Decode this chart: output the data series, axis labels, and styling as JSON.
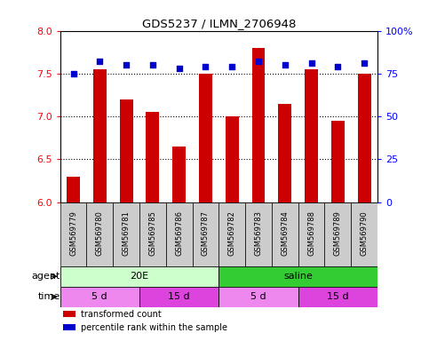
{
  "title": "GDS5237 / ILMN_2706948",
  "samples": [
    "GSM569779",
    "GSM569780",
    "GSM569781",
    "GSM569785",
    "GSM569786",
    "GSM569787",
    "GSM569782",
    "GSM569783",
    "GSM569784",
    "GSM569788",
    "GSM569789",
    "GSM569790"
  ],
  "transformed_counts": [
    6.3,
    7.55,
    7.2,
    7.05,
    6.65,
    7.5,
    7.0,
    7.8,
    7.15,
    7.55,
    6.95,
    7.5
  ],
  "percentile_ranks": [
    75,
    82,
    80,
    80,
    78,
    79,
    79,
    82,
    80,
    81,
    79,
    81
  ],
  "ylim_left": [
    6,
    8
  ],
  "ylim_right": [
    0,
    100
  ],
  "yticks_left": [
    6,
    6.5,
    7,
    7.5,
    8
  ],
  "yticks_right": [
    0,
    25,
    50,
    75,
    100
  ],
  "bar_color": "#cc0000",
  "dot_color": "#0000cc",
  "agent_groups": [
    {
      "label": "20E",
      "start": 0,
      "end": 6,
      "color": "#ccffcc"
    },
    {
      "label": "saline",
      "start": 6,
      "end": 12,
      "color": "#33cc33"
    }
  ],
  "time_groups": [
    {
      "label": "5 d",
      "start": 0,
      "end": 3,
      "color": "#ee88ee"
    },
    {
      "label": "15 d",
      "start": 3,
      "end": 6,
      "color": "#dd44dd"
    },
    {
      "label": "5 d",
      "start": 6,
      "end": 9,
      "color": "#ee88ee"
    },
    {
      "label": "15 d",
      "start": 9,
      "end": 12,
      "color": "#dd44dd"
    }
  ],
  "legend_items": [
    {
      "label": "transformed count",
      "color": "#cc0000"
    },
    {
      "label": "percentile rank within the sample",
      "color": "#0000cc"
    }
  ],
  "dotted_line_value": 7.5,
  "bar_width": 0.5,
  "label_bg": "#cccccc",
  "grid_color": "#aaaaaa"
}
